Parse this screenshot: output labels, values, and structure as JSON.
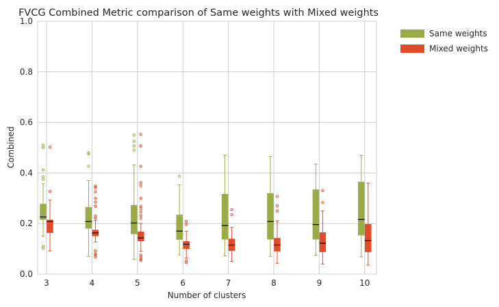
{
  "chart_data": {
    "type": "box",
    "title": "FVCG Combined Metric comparison of Same weights with Mixed weights",
    "xlabel": "Number of clusters",
    "ylabel": "Combined",
    "ylim": [
      0,
      1.0
    ],
    "yticks": [
      "0.0",
      "0.2",
      "0.4",
      "0.6",
      "0.8",
      "1.0"
    ],
    "grid": true,
    "legend_position": "outside-top-right",
    "categories": [
      "3",
      "4",
      "5",
      "6",
      "7",
      "8",
      "9",
      "10"
    ],
    "series": [
      {
        "name": "Same weights",
        "color": "#9aab48",
        "boxes": [
          {
            "q1": 0.215,
            "median": 0.226,
            "q3": 0.278,
            "wlo": 0.15,
            "whi": 0.358,
            "fliers": [
              0.51,
              0.5,
              0.412,
              0.385,
              0.375,
              0.11,
              0.102
            ]
          },
          {
            "q1": 0.18,
            "median": 0.208,
            "q3": 0.265,
            "wlo": 0.07,
            "whi": 0.37,
            "fliers": [
              0.48,
              0.475,
              0.427
            ]
          },
          {
            "q1": 0.158,
            "median": 0.202,
            "q3": 0.273,
            "wlo": 0.058,
            "whi": 0.432,
            "fliers": [
              0.55,
              0.525,
              0.507,
              0.49
            ]
          },
          {
            "q1": 0.136,
            "median": 0.17,
            "q3": 0.235,
            "wlo": 0.076,
            "whi": 0.353,
            "fliers": [
              0.387
            ]
          },
          {
            "q1": 0.137,
            "median": 0.192,
            "q3": 0.317,
            "wlo": 0.072,
            "whi": 0.47,
            "fliers": []
          },
          {
            "q1": 0.137,
            "median": 0.208,
            "q3": 0.32,
            "wlo": 0.07,
            "whi": 0.465,
            "fliers": []
          },
          {
            "q1": 0.137,
            "median": 0.196,
            "q3": 0.335,
            "wlo": 0.074,
            "whi": 0.435,
            "fliers": []
          },
          {
            "q1": 0.153,
            "median": 0.216,
            "q3": 0.365,
            "wlo": 0.068,
            "whi": 0.47,
            "fliers": []
          }
        ]
      },
      {
        "name": "Mixed weights",
        "color": "#e04b2a",
        "boxes": [
          {
            "q1": 0.163,
            "median": 0.208,
            "q3": 0.215,
            "wlo": 0.092,
            "whi": 0.293,
            "fliers": [
              0.502,
              0.327
            ]
          },
          {
            "q1": 0.15,
            "median": 0.163,
            "q3": 0.175,
            "wlo": 0.127,
            "whi": 0.213,
            "fliers": [
              0.348,
              0.343,
              0.325,
              0.3,
              0.285,
              0.268,
              0.23,
              0.222,
              0.092,
              0.08,
              0.075,
              0.068
            ]
          },
          {
            "q1": 0.13,
            "median": 0.143,
            "q3": 0.168,
            "wlo": 0.09,
            "whi": 0.2,
            "fliers": [
              0.552,
              0.507,
              0.426,
              0.362,
              0.35,
              0.3,
              0.268,
              0.26,
              0.247,
              0.232,
              0.22,
              0.075,
              0.068,
              0.058,
              0.055
            ]
          },
          {
            "q1": 0.1,
            "median": 0.118,
            "q3": 0.13,
            "wlo": 0.063,
            "whi": 0.17,
            "fliers": [
              0.208,
              0.196,
              0.053,
              0.046
            ]
          },
          {
            "q1": 0.092,
            "median": 0.115,
            "q3": 0.14,
            "wlo": 0.05,
            "whi": 0.185,
            "fliers": [
              0.255,
              0.235
            ]
          },
          {
            "q1": 0.09,
            "median": 0.115,
            "q3": 0.143,
            "wlo": 0.043,
            "whi": 0.21,
            "fliers": [
              0.307,
              0.27,
              0.25
            ]
          },
          {
            "q1": 0.087,
            "median": 0.122,
            "q3": 0.165,
            "wlo": 0.04,
            "whi": 0.25,
            "fliers": [
              0.33,
              0.283
            ]
          },
          {
            "q1": 0.087,
            "median": 0.132,
            "q3": 0.198,
            "wlo": 0.035,
            "whi": 0.36,
            "fliers": []
          }
        ]
      }
    ]
  }
}
